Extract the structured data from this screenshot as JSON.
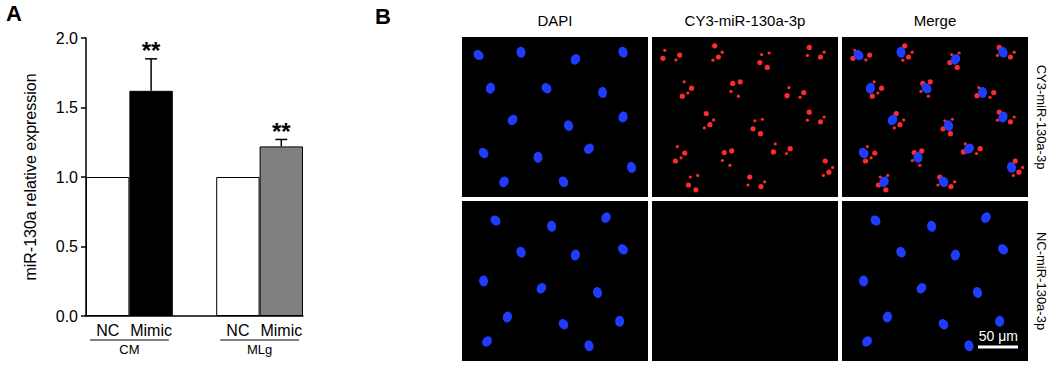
{
  "chart_data": {
    "type": "bar",
    "panel_label": "A",
    "categories": [
      "NC",
      "Mimic",
      null,
      "NC",
      "Mimic"
    ],
    "values": [
      1,
      1.62,
      null,
      1,
      1.22
    ],
    "errors": [
      null,
      0.23,
      null,
      null,
      0.05
    ],
    "significance": [
      null,
      "**",
      null,
      null,
      "**"
    ],
    "colors": [
      "#ffffff",
      "#000000",
      null,
      "#ffffff",
      "#808080"
    ],
    "groups": [
      {
        "name": "CM",
        "from": 0,
        "to": 1
      },
      {
        "name": "MLg",
        "from": 3,
        "to": 4
      }
    ],
    "ylabel": "miR-130a relative expression",
    "ylim": [
      0,
      2
    ],
    "yticks": [
      {
        "value": 0,
        "label": "0.0"
      },
      {
        "value": 0.5,
        "label": "0.5"
      },
      {
        "value": 1,
        "label": "1.0"
      },
      {
        "value": 1.5,
        "label": "1.5"
      },
      {
        "value": 2,
        "label": "2.0"
      }
    ],
    "grid": false
  },
  "images": {
    "panel_label": "B",
    "columns": [
      "DAPI",
      "CY3-miR-130a-3p",
      "Merge"
    ],
    "rows": [
      "CY3-miR-130a-3p",
      "NC-miR-130a-3p"
    ],
    "scale_bar": "50 μm"
  }
}
